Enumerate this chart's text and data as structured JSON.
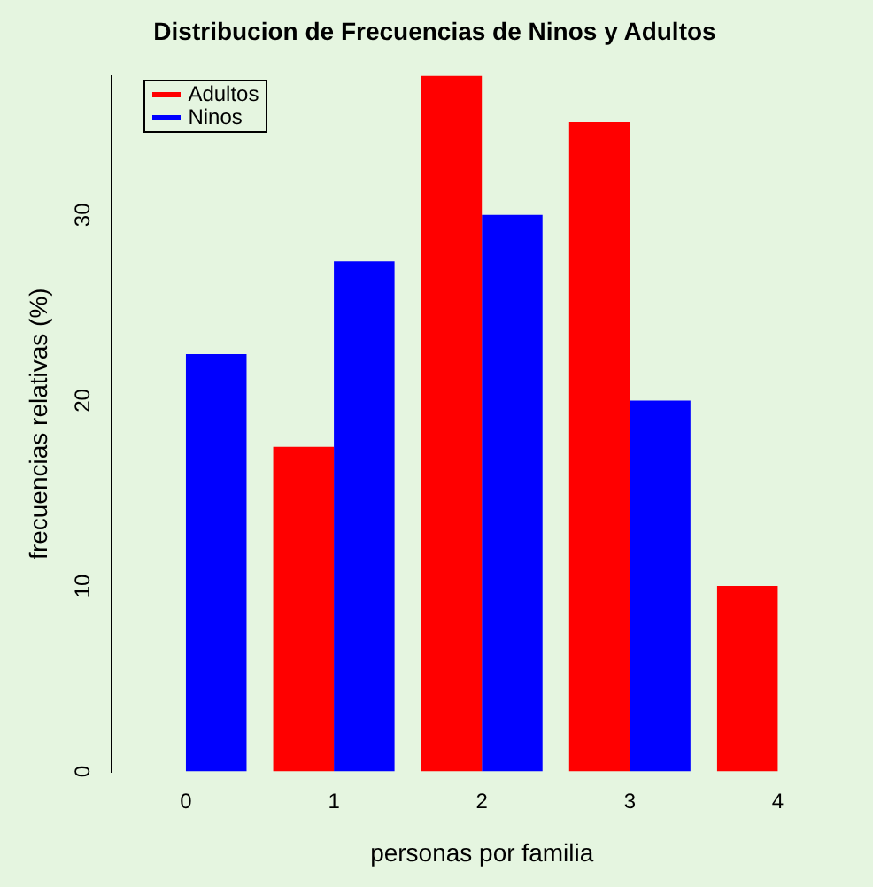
{
  "chart_data": {
    "type": "bar",
    "title": "Distribucion de Frecuencias de Ninos y Adultos",
    "xlabel": "personas por familia",
    "ylabel": "frecuencias relativas (%)",
    "categories": [
      "0",
      "1",
      "2",
      "3",
      "4"
    ],
    "series": [
      {
        "name": "Adultos",
        "color": "#ff0000",
        "values": [
          0,
          17.5,
          37.5,
          35,
          10
        ]
      },
      {
        "name": "Ninos",
        "color": "#0000ff",
        "values": [
          22.5,
          27.5,
          30,
          20,
          0
        ]
      }
    ],
    "ylim": [
      0,
      37.5
    ],
    "yticks": [
      0,
      10,
      20,
      30
    ],
    "grid": false,
    "legend": "top left"
  }
}
